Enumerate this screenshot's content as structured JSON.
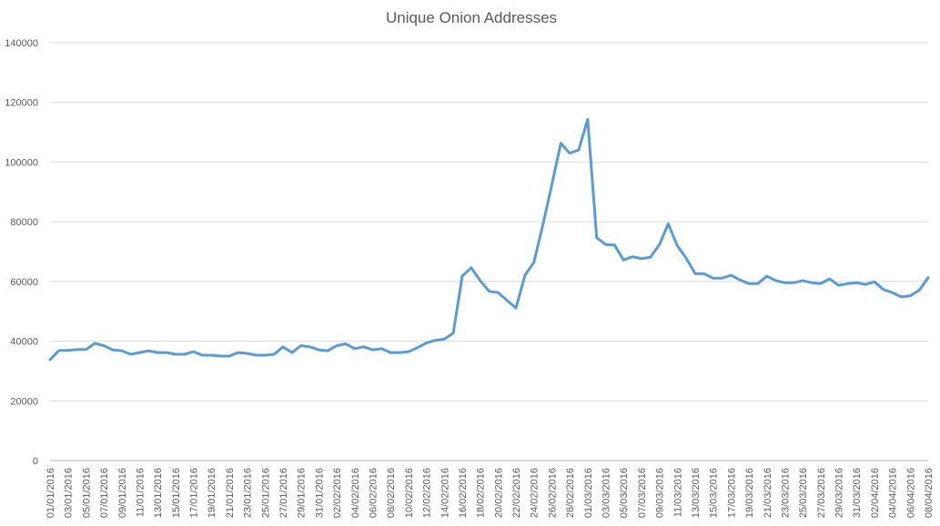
{
  "chart_data": {
    "type": "line",
    "title": "Unique Onion Addresses",
    "xlabel": "",
    "ylabel": "",
    "ylim": [
      0,
      140000
    ],
    "yticks": [
      0,
      20000,
      40000,
      60000,
      80000,
      100000,
      120000,
      140000
    ],
    "grid": true,
    "legend": "none",
    "colors": {
      "series": "#5b9bd5",
      "grid": "#d9d9d9",
      "text": "#595959"
    },
    "x": [
      "01/01/2016",
      "02/01/2016",
      "03/01/2016",
      "04/01/2016",
      "05/01/2016",
      "06/01/2016",
      "07/01/2016",
      "08/01/2016",
      "09/01/2016",
      "10/01/2016",
      "11/01/2016",
      "12/01/2016",
      "13/01/2016",
      "14/01/2016",
      "15/01/2016",
      "16/01/2016",
      "17/01/2016",
      "18/01/2016",
      "19/01/2016",
      "20/01/2016",
      "21/01/2016",
      "22/01/2016",
      "23/01/2016",
      "24/01/2016",
      "25/01/2016",
      "26/01/2016",
      "27/01/2016",
      "28/01/2016",
      "29/01/2016",
      "30/01/2016",
      "31/01/2016",
      "01/02/2016",
      "02/02/2016",
      "03/02/2016",
      "04/02/2016",
      "05/02/2016",
      "06/02/2016",
      "07/02/2016",
      "08/02/2016",
      "09/02/2016",
      "10/02/2016",
      "11/02/2016",
      "12/02/2016",
      "13/02/2016",
      "14/02/2016",
      "15/02/2016",
      "16/02/2016",
      "17/02/2016",
      "18/02/2016",
      "19/02/2016",
      "20/02/2016",
      "21/02/2016",
      "22/02/2016",
      "23/02/2016",
      "24/02/2016",
      "25/02/2016",
      "26/02/2016",
      "27/02/2016",
      "28/02/2016",
      "29/02/2016",
      "01/03/2016",
      "02/03/2016",
      "03/03/2016",
      "04/03/2016",
      "05/03/2016",
      "06/03/2016",
      "07/03/2016",
      "08/03/2016",
      "09/03/2016",
      "10/03/2016",
      "11/03/2016",
      "12/03/2016",
      "13/03/2016",
      "14/03/2016",
      "15/03/2016",
      "16/03/2016",
      "17/03/2016",
      "18/03/2016",
      "19/03/2016",
      "20/03/2016",
      "21/03/2016",
      "22/03/2016",
      "23/03/2016",
      "24/03/2016",
      "25/03/2016",
      "26/03/2016",
      "27/03/2016",
      "28/03/2016",
      "29/03/2016",
      "30/03/2016",
      "31/03/2016",
      "01/04/2016",
      "02/04/2016",
      "03/04/2016",
      "04/04/2016",
      "05/04/2016",
      "06/04/2016",
      "07/04/2016",
      "08/04/2016"
    ],
    "series": [
      {
        "values": [
          33800,
          36900,
          36900,
          37200,
          37200,
          39300,
          38500,
          37100,
          36800,
          35600,
          36200,
          36800,
          36200,
          36200,
          35600,
          35600,
          36500,
          35300,
          35300,
          35000,
          35000,
          36200,
          35900,
          35300,
          35300,
          35600,
          38100,
          36200,
          38500,
          38100,
          37100,
          36800,
          38500,
          39100,
          37500,
          38100,
          37100,
          37500,
          36200,
          36200,
          36500,
          37800,
          39400,
          40300,
          40700,
          42700,
          61800,
          64600,
          60300,
          56700,
          56300,
          53700,
          51100,
          62100,
          66400,
          79000,
          92400,
          106300,
          103000,
          104100,
          114300,
          74700,
          72400,
          72200,
          67200,
          68300,
          67700,
          68100,
          72300,
          79300,
          72000,
          67800,
          62600,
          62600,
          61100,
          61100,
          62100,
          60500,
          59300,
          59300,
          61800,
          60300,
          59600,
          59600,
          60300,
          59600,
          59300,
          60900,
          58700,
          59300,
          59600,
          59000,
          59900,
          57300,
          56300,
          54800,
          55200,
          57100,
          61300
        ]
      }
    ]
  }
}
